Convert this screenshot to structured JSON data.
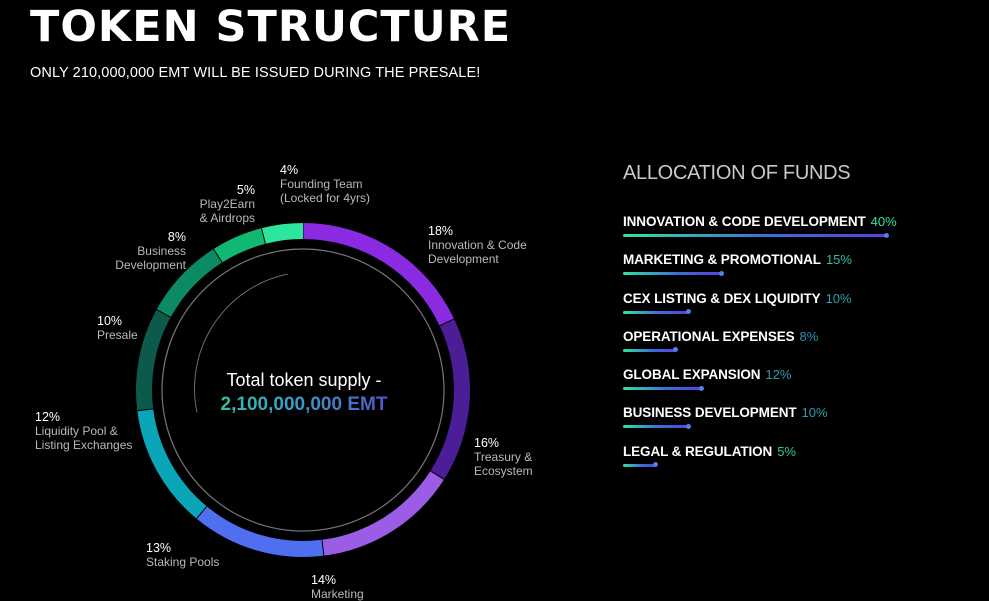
{
  "page": {
    "title": "TOKEN STRUCTURE",
    "subtitle": "ONLY 210,000,000 EMT WILL BE ISSUED DURING THE PRESALE!"
  },
  "chart_data": [
    {
      "type": "pie",
      "center_label": "Total token supply -",
      "center_value": "2,100,000,000 EMT",
      "slices": [
        {
          "label": "Innovation & Code Development",
          "value": 18,
          "value_label": "18%",
          "color": "#8a2be2"
        },
        {
          "label": "Treasury & Ecosystem",
          "value": 16,
          "value_label": "16%",
          "color": "#4b1d96"
        },
        {
          "label": "Marketing",
          "value": 14,
          "value_label": "14%",
          "color": "#9b5de5"
        },
        {
          "label": "Staking Pools",
          "value": 13,
          "value_label": "13%",
          "color": "#4f6ff0"
        },
        {
          "label": "Liquidity Pool & Listing Exchanges",
          "value": 12,
          "value_label": "12%",
          "color": "#0aa6b8"
        },
        {
          "label": "Presale",
          "value": 10,
          "value_label": "10%",
          "color": "#0c5a4c"
        },
        {
          "label": "Business Development",
          "value": 8,
          "value_label": "8%",
          "color": "#0b8a63"
        },
        {
          "label": "Play2Earn & Airdrops",
          "value": 5,
          "value_label": "5%",
          "color": "#12b870"
        },
        {
          "label": "Founding Team (Locked for 4yrs)",
          "value": 4,
          "value_label": "4%",
          "color": "#2ee59d"
        }
      ]
    },
    {
      "type": "bar",
      "title": "ALLOCATION OF FUNDS",
      "categories": [
        "INNOVATION & CODE DEVELOPMENT",
        "MARKETING & PROMOTIONAL",
        "CEX LISTING & DEX LIQUIDITY",
        "OPERATIONAL EXPENSES",
        "GLOBAL EXPANSION",
        "BUSINESS DEVELOPMENT",
        "LEGAL & REGULATION"
      ],
      "values": [
        40,
        15,
        10,
        8,
        12,
        10,
        5
      ],
      "value_labels": [
        "40%",
        "15%",
        "10%",
        "8%",
        "12%",
        "10%",
        "5%"
      ]
    }
  ]
}
